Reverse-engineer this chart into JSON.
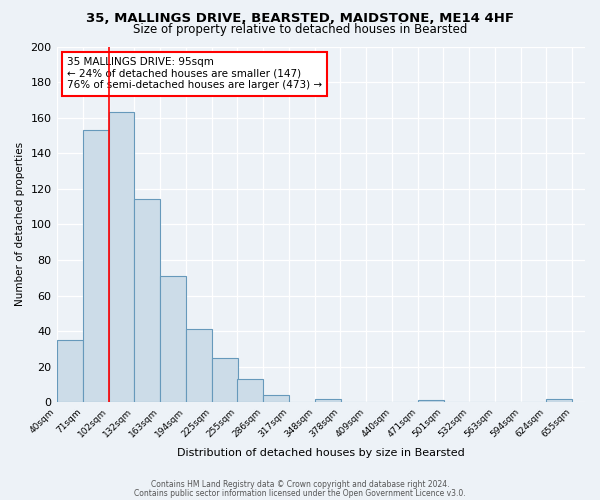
{
  "title": "35, MALLINGS DRIVE, BEARSTED, MAIDSTONE, ME14 4HF",
  "subtitle": "Size of property relative to detached houses in Bearsted",
  "bar_left_edges": [
    40,
    71,
    102,
    132,
    163,
    194,
    225,
    255,
    286,
    317,
    348,
    378,
    409,
    440,
    471,
    501,
    532,
    563,
    594,
    624
  ],
  "bar_heights": [
    35,
    153,
    163,
    114,
    71,
    41,
    25,
    13,
    4,
    0,
    2,
    0,
    0,
    0,
    1,
    0,
    0,
    0,
    0,
    2
  ],
  "bin_width": 31,
  "bar_color": "#ccdce8",
  "bar_edge_color": "#6699bb",
  "xtick_labels": [
    "40sqm",
    "71sqm",
    "102sqm",
    "132sqm",
    "163sqm",
    "194sqm",
    "225sqm",
    "255sqm",
    "286sqm",
    "317sqm",
    "348sqm",
    "378sqm",
    "409sqm",
    "440sqm",
    "471sqm",
    "501sqm",
    "532sqm",
    "563sqm",
    "594sqm",
    "624sqm",
    "655sqm"
  ],
  "ylabel": "Number of detached properties",
  "xlabel": "Distribution of detached houses by size in Bearsted",
  "ylim": [
    0,
    200
  ],
  "yticks": [
    0,
    20,
    40,
    60,
    80,
    100,
    120,
    140,
    160,
    180,
    200
  ],
  "red_line_x": 102,
  "annotation_title": "35 MALLINGS DRIVE: 95sqm",
  "annotation_line1": "← 24% of detached houses are smaller (147)",
  "annotation_line2": "76% of semi-detached houses are larger (473) →",
  "footer1": "Contains HM Land Registry data © Crown copyright and database right 2024.",
  "footer2": "Contains public sector information licensed under the Open Government Licence v3.0.",
  "bg_color": "#edf2f7",
  "plot_bg_color": "#edf2f7",
  "grid_color": "#ffffff",
  "title_fontsize": 9.5,
  "subtitle_fontsize": 8.5
}
